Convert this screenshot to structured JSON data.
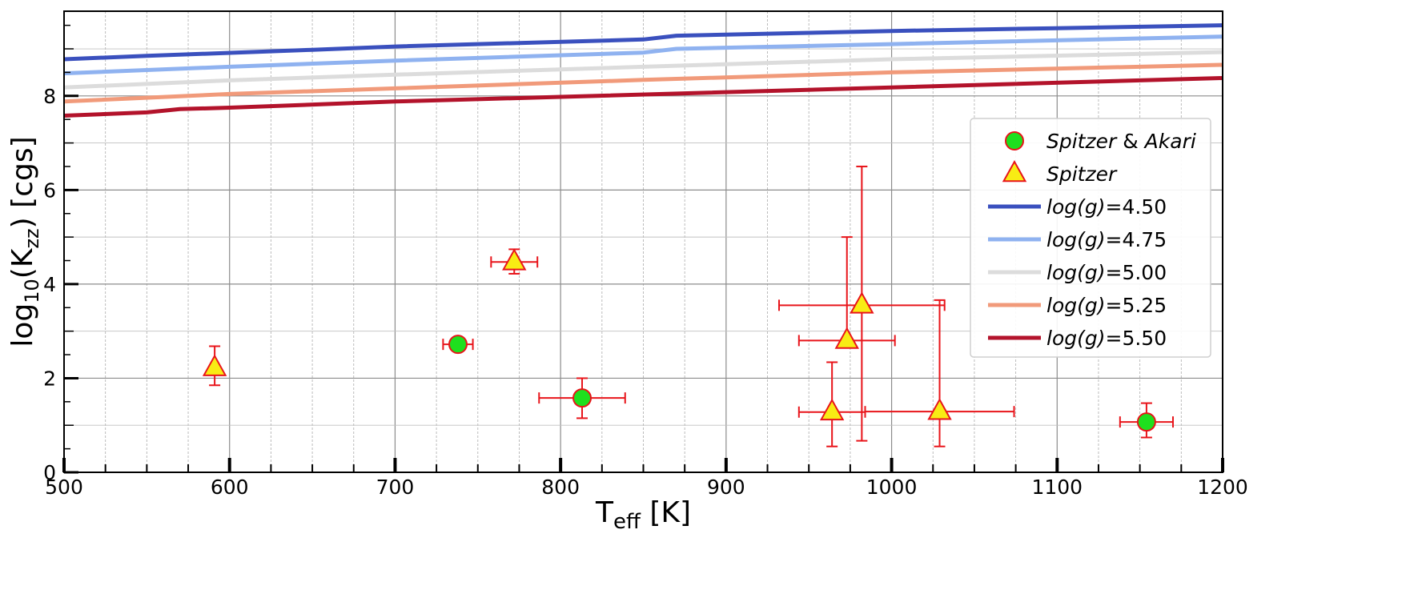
{
  "chart_data": {
    "type": "scatter",
    "xlabel": {
      "main": "T",
      "sub": "eff",
      "unit": " [K]"
    },
    "ylabel": {
      "pre": "log",
      "sub1": "10",
      "mid": "(K",
      "sub2": "zz",
      "post": ") [cgs]"
    },
    "xlim": [
      500,
      1200
    ],
    "ylim": [
      0,
      9.8
    ],
    "xticks": [
      500,
      600,
      700,
      800,
      900,
      1000,
      1100,
      1200
    ],
    "xtick_labels": [
      "500",
      "600",
      "700",
      "800",
      "900",
      "1000",
      "1100",
      "1200"
    ],
    "yticks": [
      0,
      2,
      4,
      6,
      8
    ],
    "ytick_labels": [
      "0",
      "2",
      "4",
      "6",
      "8"
    ],
    "grid": true,
    "legend_position": "right",
    "colors": {
      "marker_edge": "#e8141a",
      "circle_fill": "#1ee01e",
      "triangle_fill": "#f8ec14",
      "errorbar": "#e8141a"
    },
    "series": [
      {
        "name": "Spitzer & Akari",
        "name_parts": [
          {
            "text": "Spitzer",
            "italic": true
          },
          {
            "text": " & ",
            "italic": false
          },
          {
            "text": "Akari",
            "italic": true
          }
        ],
        "marker": "circle",
        "points": [
          {
            "x": 738,
            "y": 2.72,
            "xerr": 9,
            "yerr": [
              0.1,
              0.1
            ]
          },
          {
            "x": 813,
            "y": 1.58,
            "xerr": 26,
            "yerr": [
              0.43,
              0.42
            ]
          },
          {
            "x": 1154,
            "y": 1.07,
            "xerr": 16,
            "yerr": [
              0.33,
              0.4
            ]
          }
        ]
      },
      {
        "name": "Spitzer",
        "name_parts": [
          {
            "text": "Spitzer",
            "italic": true
          }
        ],
        "marker": "triangle",
        "points": [
          {
            "x": 591,
            "y": 2.22,
            "xerr": 0,
            "yerr": [
              0.37,
              0.46
            ]
          },
          {
            "x": 772,
            "y": 4.47,
            "xerr": 14,
            "yerr": [
              0.25,
              0.27
            ]
          },
          {
            "x": 964,
            "y": 1.28,
            "xerr": 20,
            "yerr": [
              0.73,
              1.06
            ]
          },
          {
            "x": 973,
            "y": 2.8,
            "xerr": 29,
            "yerr": [
              0,
              2.2
            ]
          },
          {
            "x": 982,
            "y": 3.55,
            "xerr": 50,
            "yerr": [
              2.88,
              2.95
            ]
          },
          {
            "x": 1029,
            "y": 1.29,
            "xerr": 45,
            "yerr": [
              0.74,
              2.37
            ]
          }
        ]
      }
    ],
    "lines": [
      {
        "name": "log(g)=4.50",
        "color": "#3a50be",
        "x": [
          500,
          550,
          650,
          700,
          850,
          870,
          1000,
          1100,
          1200
        ],
        "y": [
          8.78,
          8.85,
          8.98,
          9.05,
          9.2,
          9.28,
          9.38,
          9.44,
          9.5
        ]
      },
      {
        "name": "log(g)=4.75",
        "color": "#8fb2f0",
        "x": [
          500,
          600,
          700,
          850,
          870,
          1000,
          1200
        ],
        "y": [
          8.48,
          8.62,
          8.75,
          8.92,
          9.0,
          9.1,
          9.26
        ]
      },
      {
        "name": "log(g)=5.00",
        "color": "#dcdcdc",
        "x": [
          500,
          600,
          700,
          850,
          1000,
          1200
        ],
        "y": [
          8.18,
          8.33,
          8.45,
          8.62,
          8.78,
          8.93
        ]
      },
      {
        "name": "log(g)=5.25",
        "color": "#f19a7a",
        "x": [
          500,
          600,
          700,
          850,
          1000,
          1200
        ],
        "y": [
          7.88,
          8.04,
          8.16,
          8.34,
          8.5,
          8.66
        ]
      },
      {
        "name": "log(g)=5.50",
        "color": "#b3132b",
        "x": [
          500,
          550,
          570,
          600,
          700,
          800,
          1000,
          1200
        ],
        "y": [
          7.58,
          7.65,
          7.72,
          7.75,
          7.88,
          7.98,
          8.18,
          8.38
        ]
      }
    ]
  }
}
